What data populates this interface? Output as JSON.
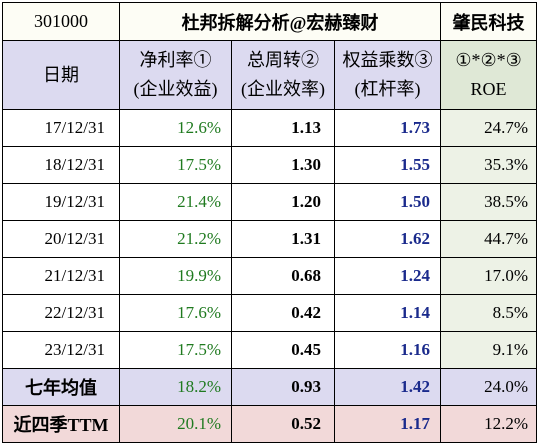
{
  "title_row": {
    "code": "301000",
    "analysis_title": "杜邦拆解分析@宏赫臻财",
    "company": "肇民科技"
  },
  "header": {
    "date_label": "日期",
    "net_margin": [
      "净利率①",
      "(企业效益)"
    ],
    "asset_turnover": [
      "总周转②",
      "(企业效率)"
    ],
    "equity_multiplier": [
      "权益乘数③",
      "(杠杆率)"
    ],
    "roe": [
      "①*②*③",
      "ROE"
    ]
  },
  "rows": [
    {
      "date": "17/12/31",
      "net_margin": "12.6%",
      "turnover": "1.13",
      "multiplier": "1.73",
      "roe": "24.7%"
    },
    {
      "date": "18/12/31",
      "net_margin": "17.5%",
      "turnover": "1.30",
      "multiplier": "1.55",
      "roe": "35.3%"
    },
    {
      "date": "19/12/31",
      "net_margin": "21.4%",
      "turnover": "1.20",
      "multiplier": "1.50",
      "roe": "38.5%"
    },
    {
      "date": "20/12/31",
      "net_margin": "21.2%",
      "turnover": "1.31",
      "multiplier": "1.62",
      "roe": "44.7%"
    },
    {
      "date": "21/12/31",
      "net_margin": "19.9%",
      "turnover": "0.68",
      "multiplier": "1.24",
      "roe": "17.0%"
    },
    {
      "date": "22/12/31",
      "net_margin": "17.6%",
      "turnover": "0.42",
      "multiplier": "1.14",
      "roe": "8.5%"
    },
    {
      "date": "23/12/31",
      "net_margin": "17.5%",
      "turnover": "0.45",
      "multiplier": "1.16",
      "roe": "9.1%"
    }
  ],
  "average": {
    "label": "七年均值",
    "net_margin": "18.2%",
    "turnover": "0.93",
    "multiplier": "1.42",
    "roe": "24.0%"
  },
  "ttm": {
    "label": "近四季TTM",
    "net_margin": "20.1%",
    "turnover": "0.52",
    "multiplier": "1.17",
    "roe": "12.2%"
  },
  "colors": {
    "net_margin_text": "#1f7a1f",
    "multiplier_text": "#1a2a8c",
    "header_bg": "#dcdaf0",
    "roe_bg": "#edf2e6",
    "ttm_bg": "#f2d9d9"
  }
}
